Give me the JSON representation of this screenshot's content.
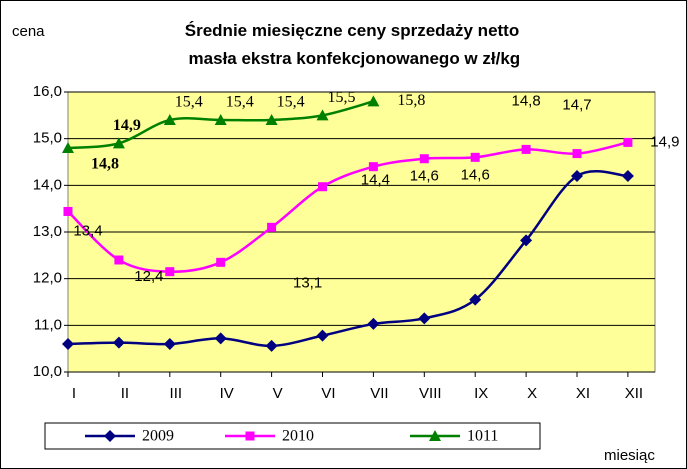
{
  "chart_data": {
    "type": "line",
    "title": "Średnie miesięczne ceny sprzedaży netto masła ekstra konfekcjonowanego w zł/kg",
    "y_label": "cena",
    "x_label": "miesiąc",
    "categories": [
      "I",
      "II",
      "III",
      "IV",
      "V",
      "VI",
      "VII",
      "VIII",
      "IX",
      "X",
      "XI",
      "XII"
    ],
    "series": [
      {
        "name": "2009",
        "color": "#000080",
        "marker": "diamond",
        "values": [
          10.6,
          10.63,
          10.6,
          10.72,
          10.56,
          10.78,
          11.03,
          11.15,
          11.55,
          12.82,
          14.2,
          14.2
        ]
      },
      {
        "name": "2010",
        "color": "#ff00ff",
        "marker": "square",
        "values": [
          13.44,
          12.4,
          12.15,
          12.35,
          13.1,
          13.97,
          14.4,
          14.57,
          14.6,
          14.77,
          14.68,
          14.92
        ],
        "value_labels": [
          "13,4",
          "12,4",
          null,
          null,
          "13,1",
          null,
          "14,4",
          "14,6",
          "14,6",
          "14,8",
          "14,7",
          "14,9"
        ]
      },
      {
        "name": "1011",
        "color": "#008000",
        "marker": "triangle",
        "values": [
          14.8,
          14.9,
          15.4,
          15.4,
          15.4,
          15.5,
          15.8,
          null,
          null,
          null,
          null,
          null
        ],
        "value_labels": [
          "14,8",
          "14,9",
          "15,4",
          "15,4",
          "15,4",
          "15,5",
          "15,8",
          null,
          null,
          null,
          null,
          null
        ]
      }
    ],
    "ylim": [
      10,
      16
    ],
    "yticks": [
      {
        "value": 10,
        "label": "10,0"
      },
      {
        "value": 11,
        "label": "11,0"
      },
      {
        "value": 12,
        "label": "12,0"
      },
      {
        "value": 13,
        "label": "13,0"
      },
      {
        "value": 14,
        "label": "14,0"
      },
      {
        "value": 15,
        "label": "15,0"
      },
      {
        "value": 16,
        "label": "16,0"
      }
    ],
    "grid": true,
    "legend": "bottom"
  }
}
